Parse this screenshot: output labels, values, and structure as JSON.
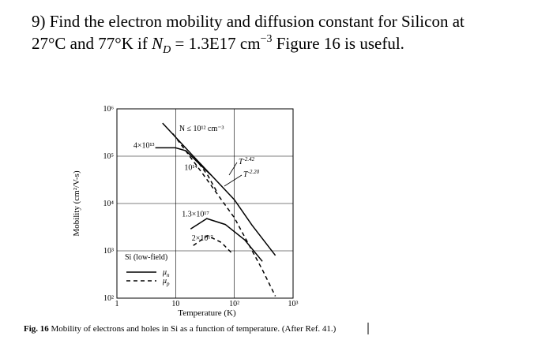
{
  "question": {
    "line1": "9) Find the electron mobility and diffusion constant for Silicon at",
    "line2": {
      "text": "27°C and 77°K if",
      "symbol": "N",
      "subscript": "D",
      "value": "= 1.3E17 cm",
      "exponent": "−3",
      "tail": "Figure 16 is useful."
    }
  },
  "chart_data": {
    "type": "line",
    "log_x": true,
    "log_y": true,
    "grid": true,
    "x_label": "Temperature (K)",
    "y_label": "Mobility (cm²/V-s)",
    "xlim": [
      1,
      1000
    ],
    "ylim": [
      100,
      1000000
    ],
    "xticks": [
      1,
      10,
      {
        "value": 100,
        "label": "10²"
      },
      {
        "value": 1000,
        "label": "10³"
      }
    ],
    "yticks": [
      {
        "value": 100,
        "label": "10²"
      },
      {
        "value": 1000,
        "label": "10³"
      },
      {
        "value": 10000,
        "label": "10⁴"
      },
      {
        "value": 100000,
        "label": "10⁵"
      },
      {
        "value": 1000000,
        "label": "10⁶"
      }
    ],
    "series": [
      {
        "name": "N ≤ 10¹² cm⁻³",
        "style": "solid",
        "color": "#000000",
        "x": [
          6,
          20,
          50,
          100,
          200,
          500
        ],
        "values": [
          500000,
          100000,
          30000,
          12000,
          3500,
          800
        ]
      },
      {
        "name": "4×10¹³",
        "style": "solid",
        "color": "#000000",
        "x": [
          4.5,
          10,
          15,
          25,
          40
        ],
        "values": [
          150000,
          150000,
          130000,
          70000,
          40000
        ]
      },
      {
        "name": "1.3×10¹⁷",
        "style": "solid",
        "color": "#000000",
        "x": [
          18,
          34,
          70,
          150,
          300
        ],
        "values": [
          2900,
          4800,
          3600,
          1700,
          600
        ]
      },
      {
        "style": "dashed",
        "color": "#000000",
        "x": [
          9,
          30,
          100,
          300,
          500
        ],
        "values": [
          300000,
          40000,
          5000,
          400,
          110
        ]
      },
      {
        "name": "10¹⁴",
        "style": "dashed",
        "color": "#000000",
        "x": [
          25,
          35,
          50
        ],
        "values": [
          70000,
          40000,
          18000
        ]
      },
      {
        "name": "2×10¹⁷",
        "style": "dashed",
        "color": "#000000",
        "x": [
          20,
          35,
          60,
          90
        ],
        "values": [
          1300,
          2100,
          1500,
          900
        ]
      }
    ],
    "power_laws": [
      {
        "base": "T",
        "exponent": "-2.42"
      },
      {
        "base": "T",
        "exponent": "-2.20"
      }
    ],
    "legend_title": "Si (low-field)",
    "legend": [
      {
        "symbol": "μ",
        "subscript": "n",
        "style": "solid"
      },
      {
        "symbol": "μ",
        "subscript": "p",
        "style": "dashed"
      }
    ]
  },
  "caption": {
    "label": "Fig. 16",
    "text": "Mobility of electrons and holes in Si as a function of temperature. (After Ref. 41.)"
  }
}
